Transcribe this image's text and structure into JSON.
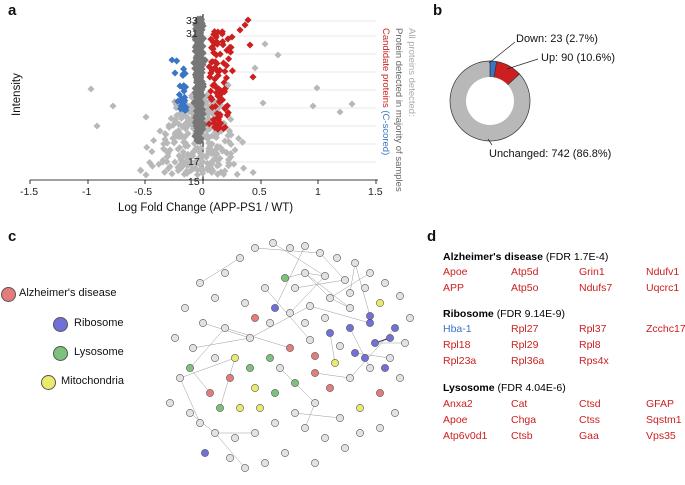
{
  "colors": {
    "up": "#cc1f1f",
    "down": "#3a74c4",
    "unchanged_light": "#b8b8b8",
    "majority": "#777777",
    "node_alz": "#e57c7c",
    "node_ribo": "#7070d8",
    "node_lyso": "#7cc27c",
    "node_mito": "#eaea6c"
  },
  "panels": {
    "a": "a",
    "b": "b",
    "c": "c",
    "d": "d"
  },
  "panel_a": {
    "ylabel": "Intensity",
    "xlabel": "Log Fold Change (APP-PS1 / WT)",
    "xticks": [
      "-1.5",
      "-1",
      "-0.5",
      "0",
      "0.5",
      "1",
      "1.5"
    ],
    "inner_labels": [
      "33",
      "31",
      "17",
      "15"
    ],
    "legend_all": "All proteins detected:",
    "legend_majority": "Protein detected in majority of samples",
    "legend_candidate_prefix": "Candidate proteins",
    "legend_candidate_suffix": "(C-scored)"
  },
  "chart_data": {
    "type": "pie",
    "title": "",
    "labels": [
      "Down",
      "Up",
      "Unchanged"
    ],
    "values": [
      23,
      90,
      742
    ],
    "percent": [
      2.7,
      10.6,
      86.8
    ],
    "annotations": [
      "Down: 23 (2.7%)",
      "Up: 90 (10.6%)",
      "Unchanged: 742 (86.8%)"
    ]
  },
  "panel_c": {
    "legend": [
      "Alzheimer's disease",
      "Ribosome",
      "Lysosome",
      "Mitochondria"
    ]
  },
  "panel_d": {
    "sections": [
      {
        "title": "Alzheimer's disease",
        "fdr": "(FDR 1.7E-4)",
        "genes": [
          "Apoe",
          "Atp5d",
          "Grin1",
          "Ndufv1",
          "APP",
          "Atp5o",
          "Ndufs7",
          "Uqcrc1"
        ]
      },
      {
        "title": "Ribosome",
        "fdr": "(FDR 9.14E-9)",
        "genes": [
          "Hba-1",
          "Rpl27",
          "Rpl37",
          "Zcchc17",
          "Rpl18",
          "Rpl29",
          "Rpl8",
          "Rpl23a",
          "Rpl36a",
          "Rps4x"
        ]
      },
      {
        "title": "Lysosome",
        "fdr": "(FDR 4.04E-6)",
        "genes": [
          "Anxa2",
          "Cat",
          "Ctsd",
          "GFAP",
          "Apoe",
          "Chga",
          "Ctss",
          "Sqstm1",
          "Atp6v0d1",
          "Ctsb",
          "Gaa",
          "Vps35"
        ]
      }
    ]
  }
}
